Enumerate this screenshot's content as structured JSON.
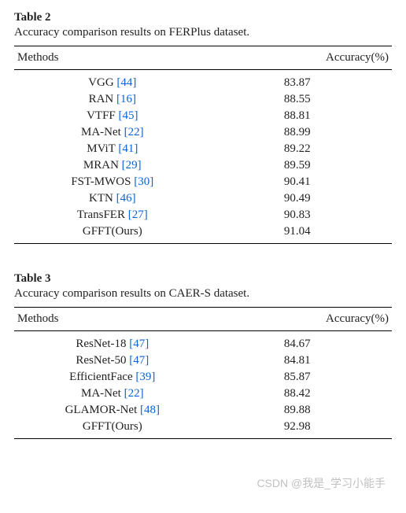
{
  "tables": [
    {
      "label": "Table 2",
      "caption": "Accuracy comparison results on FERPlus dataset.",
      "columns": [
        "Methods",
        "Accuracy(%)"
      ],
      "rows": [
        {
          "method": "VGG",
          "ref": "[44]",
          "accuracy": "83.87"
        },
        {
          "method": "RAN",
          "ref": "[16]",
          "accuracy": "88.55"
        },
        {
          "method": "VTFF",
          "ref": "[45]",
          "accuracy": "88.81"
        },
        {
          "method": "MA-Net",
          "ref": "[22]",
          "accuracy": "88.99"
        },
        {
          "method": "MViT",
          "ref": "[41]",
          "accuracy": "89.22"
        },
        {
          "method": "MRAN",
          "ref": "[29]",
          "accuracy": "89.59"
        },
        {
          "method": "FST-MWOS",
          "ref": "[30]",
          "accuracy": "90.41"
        },
        {
          "method": "KTN",
          "ref": "[46]",
          "accuracy": "90.49"
        },
        {
          "method": "TransFER",
          "ref": "[27]",
          "accuracy": "90.83"
        },
        {
          "method": "GFFT(Ours)",
          "ref": "",
          "accuracy": "91.04"
        }
      ]
    },
    {
      "label": "Table 3",
      "caption": "Accuracy comparison results on CAER-S dataset.",
      "columns": [
        "Methods",
        "Accuracy(%)"
      ],
      "rows": [
        {
          "method": "ResNet-18",
          "ref": "[47]",
          "accuracy": "84.67"
        },
        {
          "method": "ResNet-50",
          "ref": "[47]",
          "accuracy": "84.81"
        },
        {
          "method": "EfficientFace",
          "ref": "[39]",
          "accuracy": "85.87"
        },
        {
          "method": "MA-Net",
          "ref": "[22]",
          "accuracy": "88.42"
        },
        {
          "method": "GLAMOR-Net",
          "ref": "[48]",
          "accuracy": "89.88"
        },
        {
          "method": "GFFT(Ours)",
          "ref": "",
          "accuracy": "92.98"
        }
      ]
    }
  ],
  "watermark": "CSDN @我是_学习小能手",
  "styles": {
    "ref_color": "#0b62d6",
    "text_color": "#222222",
    "border_color": "#000000",
    "background_color": "#ffffff",
    "font_family": "Georgia, 'Times New Roman', serif",
    "font_size_pt": 11,
    "col_widths_pct": [
      52,
      48
    ],
    "method_align": "center",
    "accuracy_align": "center"
  }
}
